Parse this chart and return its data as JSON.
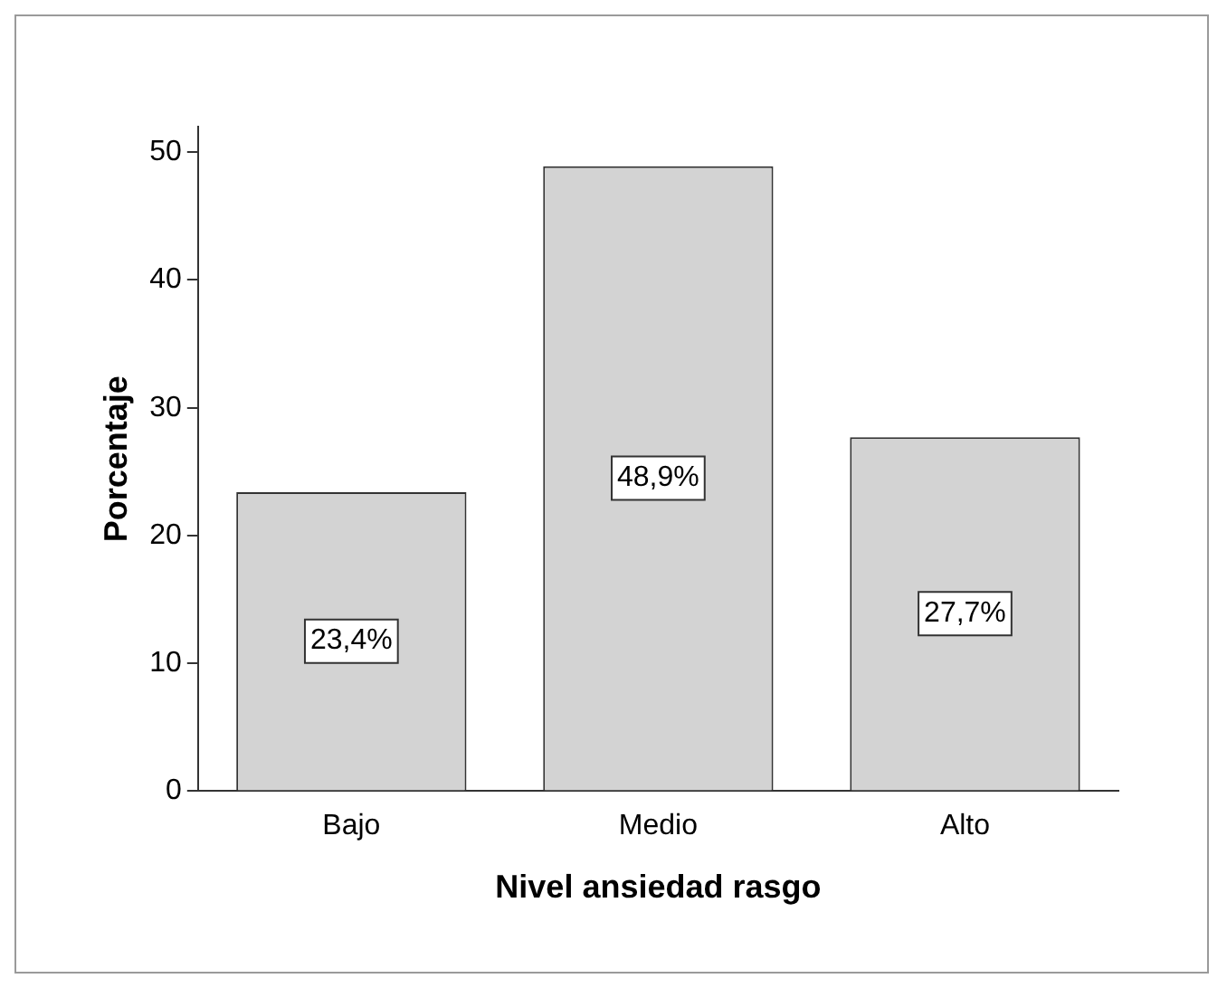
{
  "chart_data": {
    "type": "bar",
    "xlabel": "Nivel ansiedad rasgo",
    "ylabel": "Porcentaje",
    "categories": [
      "Bajo",
      "Medio",
      "Alto"
    ],
    "values": [
      23.4,
      48.9,
      27.7
    ],
    "value_labels": [
      "23,4%",
      "48,9%",
      "27,7%"
    ],
    "color": "#d3d3d3",
    "ylim": [
      0,
      52
    ],
    "yticks": [
      0,
      10,
      20,
      30,
      40,
      50
    ],
    "grid": false,
    "legend": false
  }
}
